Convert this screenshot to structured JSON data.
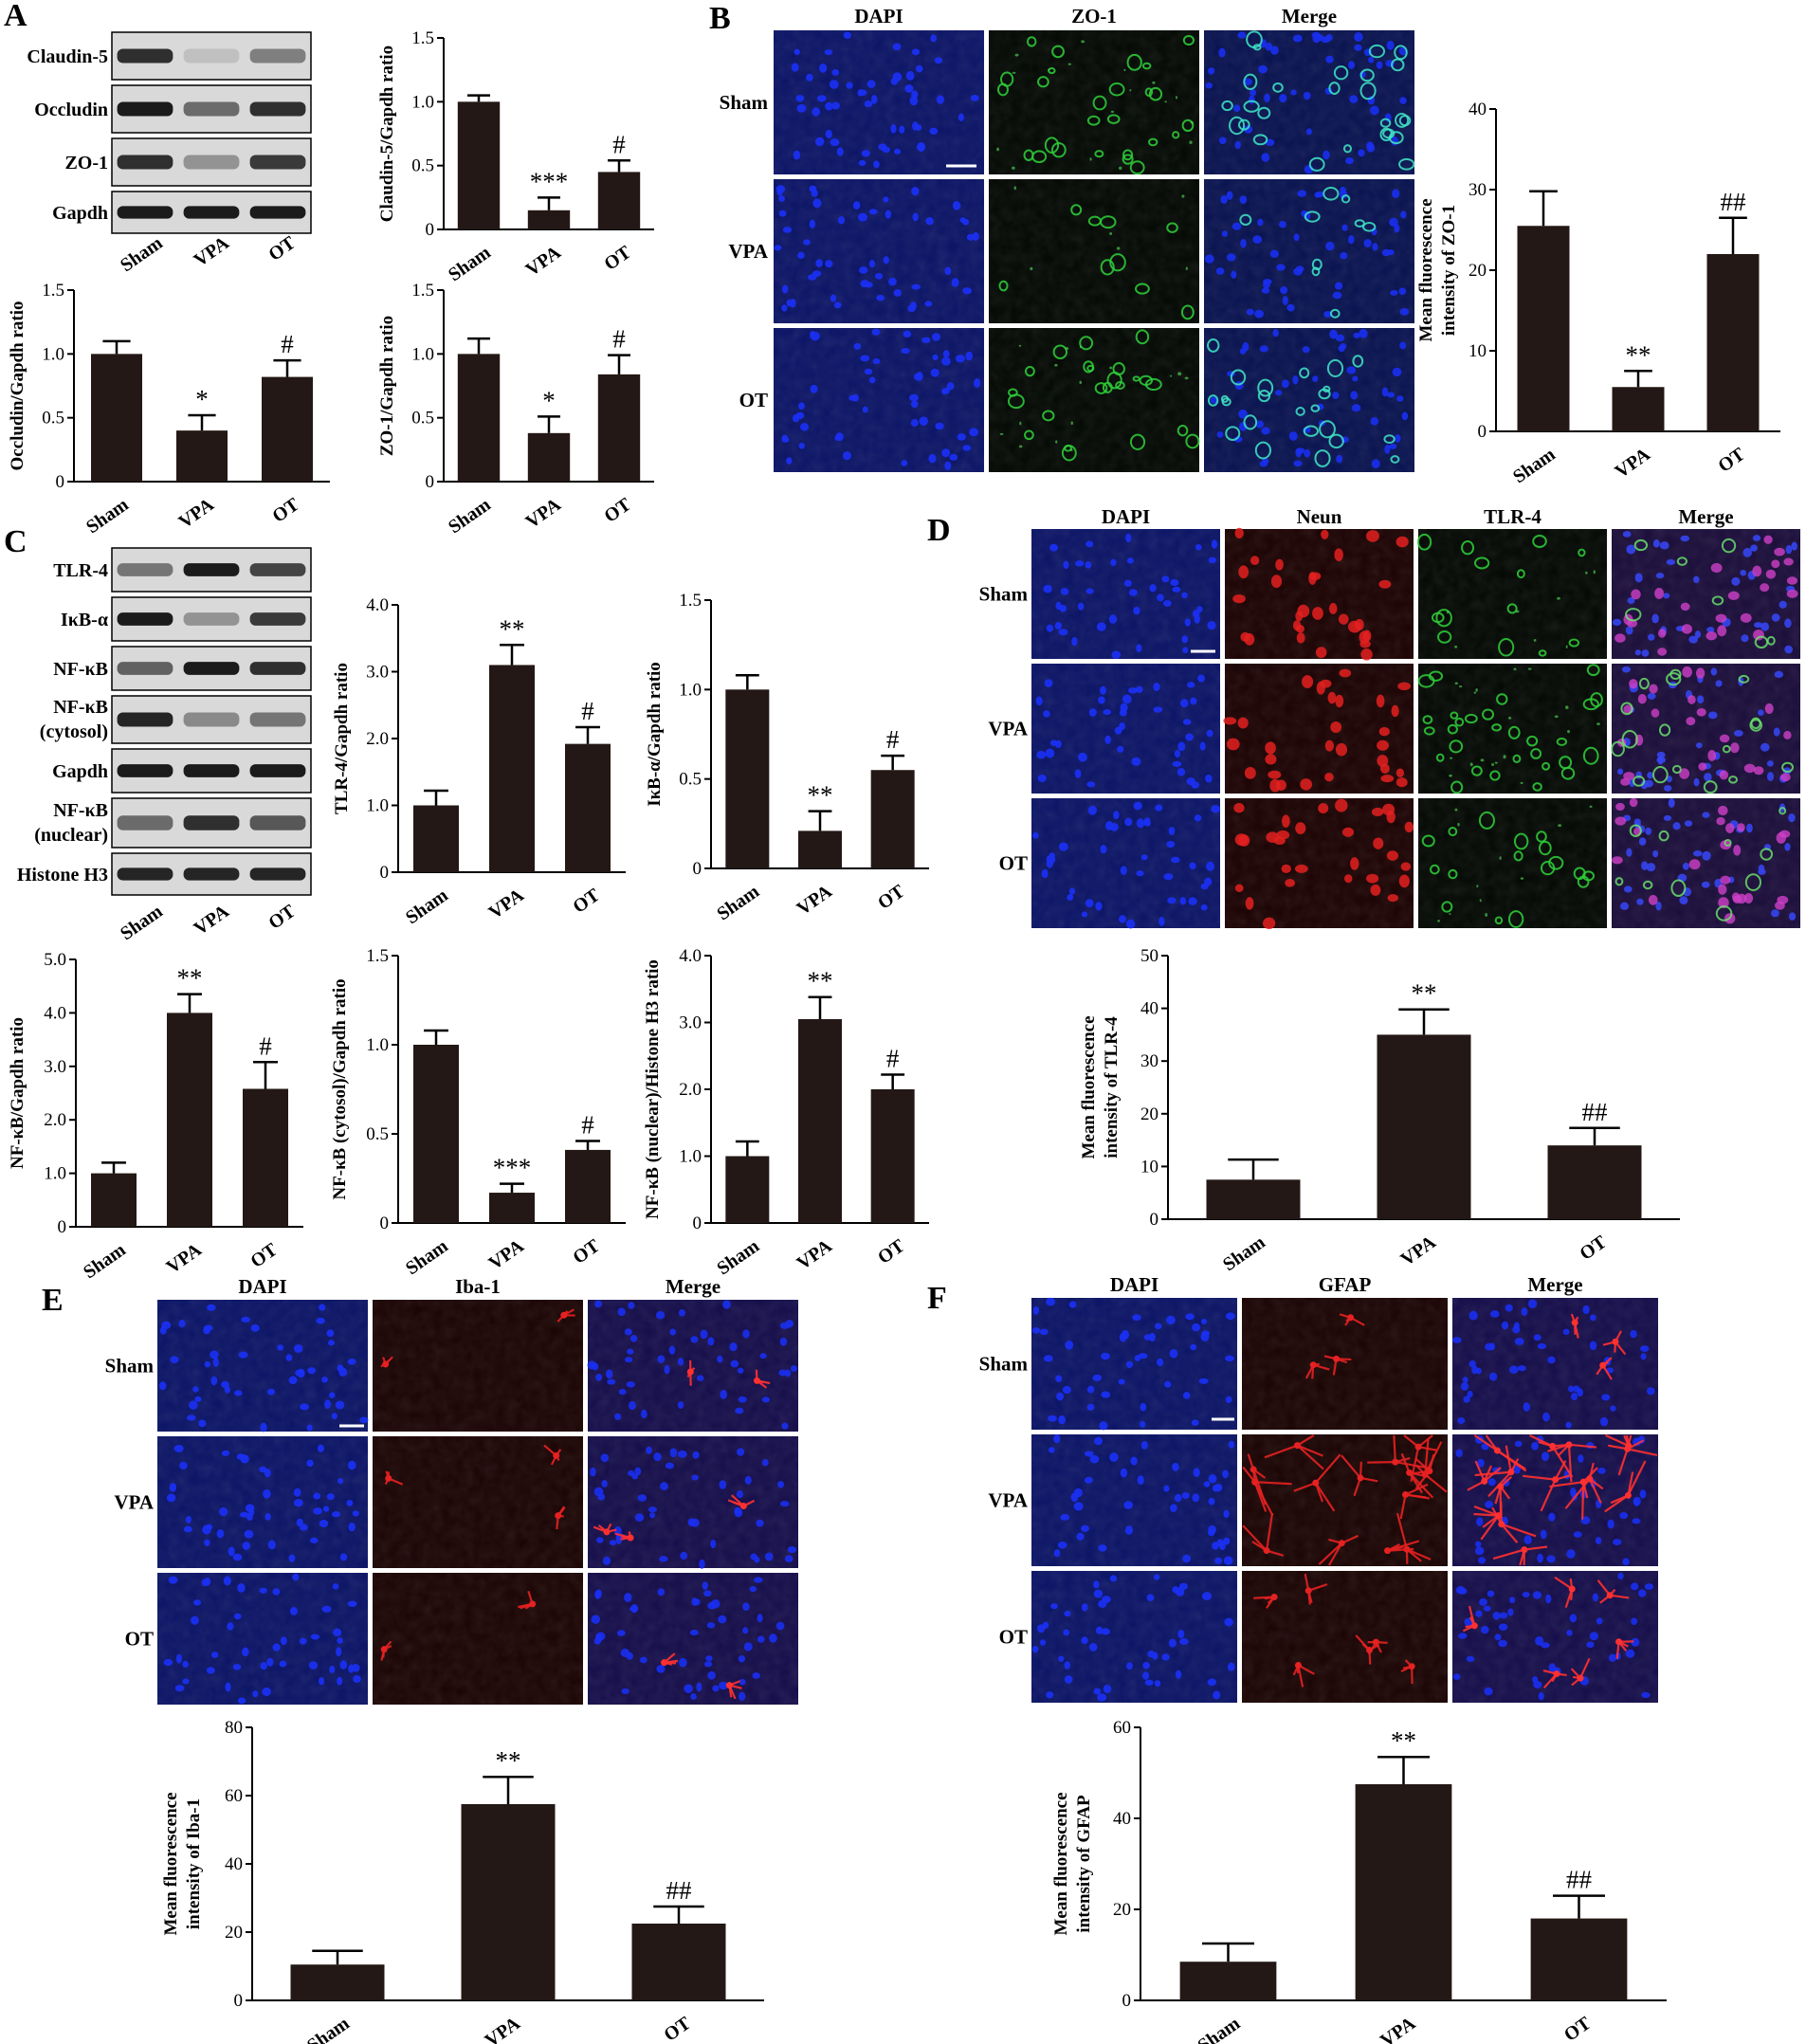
{
  "panels": {
    "A": {
      "letter": "A"
    },
    "B": {
      "letter": "B"
    },
    "C": {
      "letter": "C"
    },
    "D": {
      "letter": "D"
    },
    "E": {
      "letter": "E"
    },
    "F": {
      "letter": "F"
    }
  },
  "blots": {
    "A": {
      "labels": [
        "Claudin-5",
        "Occludin",
        "ZO-1",
        "Gapdh"
      ],
      "groups": [
        "Sham",
        "VPA",
        "OT"
      ]
    },
    "C": {
      "labels": [
        "TLR-4",
        "IκB-α",
        "NF-κB",
        "NF-κB\n(cytosol)",
        "Gapdh",
        "NF-κB\n(nuclear)",
        "Histone H3"
      ],
      "groups": [
        "Sham",
        "VPA",
        "OT"
      ]
    }
  },
  "micrographs": {
    "B": {
      "columns": [
        "DAPI",
        "ZO-1",
        "Merge"
      ],
      "rows": [
        "Sham",
        "VPA",
        "OT"
      ]
    },
    "D": {
      "columns": [
        "DAPI",
        "Neun",
        "TLR-4",
        "Merge"
      ],
      "rows": [
        "Sham",
        "VPA",
        "OT"
      ]
    },
    "E": {
      "columns": [
        "DAPI",
        "Iba-1",
        "Merge"
      ],
      "rows": [
        "Sham",
        "VPA",
        "OT"
      ]
    },
    "F": {
      "columns": [
        "DAPI",
        "GFAP",
        "Merge"
      ],
      "rows": [
        "Sham",
        "VPA",
        "OT"
      ]
    }
  },
  "colors": {
    "bar": "#231815",
    "dapi": "#1a2ff0",
    "green": "#2fd13a",
    "red": "#e01818"
  },
  "chart_data": [
    {
      "id": "A1",
      "type": "bar",
      "categories": [
        "Sham",
        "VPA",
        "OT"
      ],
      "values": [
        1.0,
        0.15,
        0.45
      ],
      "errors": [
        0.05,
        0.1,
        0.09
      ],
      "annotations": [
        "",
        "***",
        "#"
      ],
      "ylabel": "Claudin-5/Gapdh ratio",
      "ylim": [
        0,
        1.5
      ],
      "yticks": [
        "0",
        "0.5",
        "1.0",
        "1.5"
      ]
    },
    {
      "id": "A2",
      "type": "bar",
      "categories": [
        "Sham",
        "VPA",
        "OT"
      ],
      "values": [
        1.0,
        0.4,
        0.82
      ],
      "errors": [
        0.1,
        0.12,
        0.13
      ],
      "annotations": [
        "",
        "*",
        "#"
      ],
      "ylabel": "Occludin/Gapdh ratio",
      "ylim": [
        0,
        1.5
      ],
      "yticks": [
        "0",
        "0.5",
        "1.0",
        "1.5"
      ]
    },
    {
      "id": "A3",
      "type": "bar",
      "categories": [
        "Sham",
        "VPA",
        "OT"
      ],
      "values": [
        1.0,
        0.38,
        0.84
      ],
      "errors": [
        0.12,
        0.13,
        0.15
      ],
      "annotations": [
        "",
        "*",
        "#"
      ],
      "ylabel": "ZO-1/Gapdh ratio",
      "ylim": [
        0,
        1.5
      ],
      "yticks": [
        "0",
        "0.5",
        "1.0",
        "1.5"
      ]
    },
    {
      "id": "B",
      "type": "bar",
      "categories": [
        "Sham",
        "VPA",
        "OT"
      ],
      "values": [
        25.5,
        5.5,
        22
      ],
      "errors": [
        4.3,
        2,
        4.5
      ],
      "annotations": [
        "",
        "**",
        "##"
      ],
      "ylabel": "Mean fluorescence intensity of ZO-1",
      "ylim": [
        0,
        40
      ],
      "yticks": [
        "0",
        "10",
        "20",
        "30",
        "40"
      ]
    },
    {
      "id": "C1",
      "type": "bar",
      "categories": [
        "Sham",
        "VPA",
        "OT"
      ],
      "values": [
        1.0,
        3.1,
        1.92
      ],
      "errors": [
        0.22,
        0.3,
        0.25
      ],
      "annotations": [
        "",
        "**",
        "#"
      ],
      "ylabel": "TLR-4/Gapdh ratio",
      "ylim": [
        0,
        4
      ],
      "yticks": [
        "0",
        "1.0",
        "2.0",
        "3.0",
        "4.0"
      ]
    },
    {
      "id": "C2",
      "type": "bar",
      "categories": [
        "Sham",
        "VPA",
        "OT"
      ],
      "values": [
        1.0,
        0.21,
        0.55
      ],
      "errors": [
        0.08,
        0.11,
        0.08
      ],
      "annotations": [
        "",
        "**",
        "#"
      ],
      "ylabel": "IκB-α/Gapdh ratio",
      "ylim": [
        0,
        1.5
      ],
      "yticks": [
        "0",
        "0.5",
        "1.0",
        "1.5"
      ]
    },
    {
      "id": "C3",
      "type": "bar",
      "categories": [
        "Sham",
        "VPA",
        "OT"
      ],
      "values": [
        1.0,
        4.0,
        2.58
      ],
      "errors": [
        0.2,
        0.35,
        0.5
      ],
      "annotations": [
        "",
        "**",
        "#"
      ],
      "ylabel": "NF-κB/Gapdh ratio",
      "ylim": [
        0,
        5
      ],
      "yticks": [
        "0",
        "1.0",
        "2.0",
        "3.0",
        "4.0",
        "5.0"
      ]
    },
    {
      "id": "C4",
      "type": "bar",
      "categories": [
        "Sham",
        "VPA",
        "OT"
      ],
      "values": [
        1.0,
        0.17,
        0.41
      ],
      "errors": [
        0.08,
        0.05,
        0.05
      ],
      "annotations": [
        "",
        "***",
        "#"
      ],
      "ylabel": "NF-κB (cytosol)/Gapdh ratio",
      "ylim": [
        0,
        1.5
      ],
      "yticks": [
        "0",
        "0.5",
        "1.0",
        "1.5"
      ]
    },
    {
      "id": "C5",
      "type": "bar",
      "categories": [
        "Sham",
        "VPA",
        "OT"
      ],
      "values": [
        1.0,
        3.05,
        2.0
      ],
      "errors": [
        0.22,
        0.33,
        0.22
      ],
      "annotations": [
        "",
        "**",
        "#"
      ],
      "ylabel": "NF-κB (nuclear)/Histone H3 ratio",
      "ylim": [
        0,
        4
      ],
      "yticks": [
        "0",
        "1.0",
        "2.0",
        "3.0",
        "4.0"
      ]
    },
    {
      "id": "D",
      "type": "bar",
      "categories": [
        "Sham",
        "VPA",
        "OT"
      ],
      "values": [
        7.5,
        35,
        14
      ],
      "errors": [
        3.8,
        4.8,
        3.3
      ],
      "annotations": [
        "",
        "**",
        "##"
      ],
      "ylabel": "Mean fluorescence intensity of TLR-4",
      "ylim": [
        0,
        50
      ],
      "yticks": [
        "0",
        "10",
        "20",
        "30",
        "40",
        "50"
      ]
    },
    {
      "id": "E",
      "type": "bar",
      "categories": [
        "Sham",
        "VPA",
        "OT"
      ],
      "values": [
        10.5,
        57.5,
        22.5
      ],
      "errors": [
        4,
        8,
        5
      ],
      "annotations": [
        "",
        "**",
        "##"
      ],
      "ylabel": "Mean fluorescence intensity of Iba-1",
      "ylim": [
        0,
        80
      ],
      "yticks": [
        "0",
        "20",
        "40",
        "60",
        "80"
      ]
    },
    {
      "id": "F",
      "type": "bar",
      "categories": [
        "Sham",
        "VPA",
        "OT"
      ],
      "values": [
        8.5,
        47.5,
        18
      ],
      "errors": [
        4,
        6,
        5
      ],
      "annotations": [
        "",
        "**",
        "##"
      ],
      "ylabel": "Mean fluorescence intensity of GFAP",
      "ylim": [
        0,
        60
      ],
      "yticks": [
        "0",
        "20",
        "40",
        "60"
      ]
    }
  ]
}
